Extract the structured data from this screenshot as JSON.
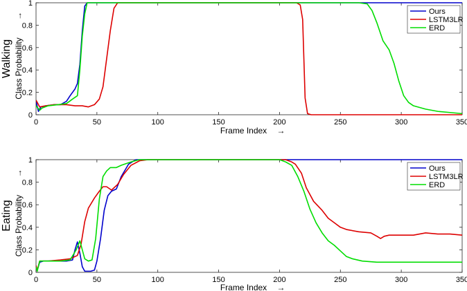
{
  "chart_data": [
    {
      "type": "line",
      "side_label": "Walking",
      "xlabel": "Frame Index",
      "xlabel_arrow": "→",
      "ylabel": "Class Probability",
      "ylabel_arrow": "→",
      "xlim": [
        0,
        350
      ],
      "ylim": [
        0,
        1
      ],
      "xticks": [
        "0",
        "50",
        "100",
        "150",
        "200",
        "250",
        "300",
        "350"
      ],
      "yticks": [
        "0",
        "0.2",
        "0.4",
        "0.6",
        "0.8",
        "1"
      ],
      "grid": false,
      "legend_position": "top-right",
      "series": [
        {
          "name": "Ours",
          "color": "#0000cc",
          "points": [
            [
              0,
              0.12
            ],
            [
              2,
              0.03
            ],
            [
              4,
              0.07
            ],
            [
              8,
              0.08
            ],
            [
              15,
              0.09
            ],
            [
              20,
              0.09
            ],
            [
              25,
              0.12
            ],
            [
              28,
              0.17
            ],
            [
              32,
              0.23
            ],
            [
              34,
              0.28
            ],
            [
              36,
              0.45
            ],
            [
              38,
              0.75
            ],
            [
              40,
              0.97
            ],
            [
              42,
              1.0
            ],
            [
              100,
              1.0
            ],
            [
              200,
              1.0
            ],
            [
              300,
              1.0
            ],
            [
              350,
              1.0
            ]
          ]
        },
        {
          "name": "LSTM3LR",
          "color": "#dd0000",
          "points": [
            [
              0,
              0.13
            ],
            [
              3,
              0.07
            ],
            [
              8,
              0.08
            ],
            [
              15,
              0.09
            ],
            [
              25,
              0.09
            ],
            [
              32,
              0.08
            ],
            [
              38,
              0.08
            ],
            [
              43,
              0.07
            ],
            [
              48,
              0.09
            ],
            [
              52,
              0.14
            ],
            [
              55,
              0.25
            ],
            [
              58,
              0.5
            ],
            [
              61,
              0.75
            ],
            [
              64,
              0.95
            ],
            [
              67,
              1.0
            ],
            [
              100,
              1.0
            ],
            [
              200,
              1.0
            ],
            [
              214,
              1.0
            ],
            [
              217,
              0.98
            ],
            [
              219,
              0.85
            ],
            [
              220,
              0.5
            ],
            [
              221,
              0.15
            ],
            [
              223,
              0.01
            ],
            [
              226,
              0.0
            ],
            [
              300,
              0.0
            ],
            [
              350,
              0.0
            ]
          ]
        },
        {
          "name": "ERD",
          "color": "#00dd00",
          "points": [
            [
              0,
              0.08
            ],
            [
              3,
              0.04
            ],
            [
              5,
              0.06
            ],
            [
              10,
              0.08
            ],
            [
              18,
              0.09
            ],
            [
              25,
              0.1
            ],
            [
              30,
              0.14
            ],
            [
              34,
              0.17
            ],
            [
              36,
              0.4
            ],
            [
              38,
              0.7
            ],
            [
              40,
              0.9
            ],
            [
              42,
              1.0
            ],
            [
              100,
              1.0
            ],
            [
              200,
              1.0
            ],
            [
              265,
              1.0
            ],
            [
              272,
              0.99
            ],
            [
              276,
              0.93
            ],
            [
              280,
              0.82
            ],
            [
              285,
              0.66
            ],
            [
              290,
              0.58
            ],
            [
              294,
              0.46
            ],
            [
              298,
              0.3
            ],
            [
              302,
              0.17
            ],
            [
              306,
              0.11
            ],
            [
              310,
              0.08
            ],
            [
              320,
              0.05
            ],
            [
              330,
              0.03
            ],
            [
              340,
              0.02
            ],
            [
              350,
              0.01
            ]
          ]
        }
      ]
    },
    {
      "type": "line",
      "side_label": "Eating",
      "xlabel": "Frame Index",
      "xlabel_arrow": "→",
      "ylabel": "Class Probability",
      "ylabel_arrow": "→",
      "xlim": [
        0,
        350
      ],
      "ylim": [
        0,
        1
      ],
      "xticks": [
        "0",
        "50",
        "100",
        "150",
        "200",
        "250",
        "300",
        "350"
      ],
      "yticks": [
        "0",
        "0.2",
        "0.4",
        "0.6",
        "0.8",
        "1"
      ],
      "grid": false,
      "legend_position": "top-right",
      "series": [
        {
          "name": "Ours",
          "color": "#0000cc",
          "points": [
            [
              0,
              0.05
            ],
            [
              1,
              0.02
            ],
            [
              3,
              0.09
            ],
            [
              6,
              0.1
            ],
            [
              15,
              0.1
            ],
            [
              25,
              0.1
            ],
            [
              30,
              0.11
            ],
            [
              32,
              0.2
            ],
            [
              34,
              0.27
            ],
            [
              36,
              0.17
            ],
            [
              38,
              0.05
            ],
            [
              40,
              0.01
            ],
            [
              45,
              0.01
            ],
            [
              48,
              0.02
            ],
            [
              50,
              0.1
            ],
            [
              53,
              0.3
            ],
            [
              56,
              0.55
            ],
            [
              59,
              0.68
            ],
            [
              62,
              0.72
            ],
            [
              66,
              0.74
            ],
            [
              70,
              0.85
            ],
            [
              76,
              0.96
            ],
            [
              82,
              1.0
            ],
            [
              100,
              1.0
            ],
            [
              200,
              1.0
            ],
            [
              300,
              1.0
            ],
            [
              350,
              1.0
            ]
          ]
        },
        {
          "name": "LSTM3LR",
          "color": "#dd0000",
          "points": [
            [
              0,
              0.06
            ],
            [
              1,
              0.02
            ],
            [
              3,
              0.1
            ],
            [
              10,
              0.1
            ],
            [
              20,
              0.11
            ],
            [
              28,
              0.12
            ],
            [
              34,
              0.15
            ],
            [
              37,
              0.25
            ],
            [
              40,
              0.45
            ],
            [
              43,
              0.57
            ],
            [
              48,
              0.66
            ],
            [
              52,
              0.72
            ],
            [
              55,
              0.76
            ],
            [
              58,
              0.76
            ],
            [
              62,
              0.73
            ],
            [
              67,
              0.78
            ],
            [
              72,
              0.87
            ],
            [
              78,
              0.95
            ],
            [
              85,
              0.99
            ],
            [
              92,
              1.0
            ],
            [
              200,
              1.0
            ],
            [
              205,
              1.0
            ],
            [
              210,
              0.98
            ],
            [
              213,
              0.96
            ],
            [
              218,
              0.88
            ],
            [
              222,
              0.75
            ],
            [
              228,
              0.63
            ],
            [
              235,
              0.55
            ],
            [
              240,
              0.48
            ],
            [
              245,
              0.44
            ],
            [
              250,
              0.4
            ],
            [
              255,
              0.38
            ],
            [
              265,
              0.36
            ],
            [
              275,
              0.35
            ],
            [
              280,
              0.32
            ],
            [
              283,
              0.3
            ],
            [
              286,
              0.32
            ],
            [
              290,
              0.33
            ],
            [
              300,
              0.33
            ],
            [
              310,
              0.33
            ],
            [
              315,
              0.34
            ],
            [
              320,
              0.35
            ],
            [
              330,
              0.34
            ],
            [
              340,
              0.34
            ],
            [
              350,
              0.33
            ]
          ]
        },
        {
          "name": "ERD",
          "color": "#00dd00",
          "points": [
            [
              0,
              0.05
            ],
            [
              1,
              0.01
            ],
            [
              3,
              0.1
            ],
            [
              10,
              0.1
            ],
            [
              20,
              0.1
            ],
            [
              28,
              0.11
            ],
            [
              33,
              0.2
            ],
            [
              36,
              0.28
            ],
            [
              38,
              0.2
            ],
            [
              40,
              0.12
            ],
            [
              43,
              0.1
            ],
            [
              46,
              0.11
            ],
            [
              49,
              0.3
            ],
            [
              52,
              0.65
            ],
            [
              55,
              0.85
            ],
            [
              58,
              0.9
            ],
            [
              61,
              0.93
            ],
            [
              66,
              0.93
            ],
            [
              70,
              0.95
            ],
            [
              78,
              0.98
            ],
            [
              85,
              1.0
            ],
            [
              200,
              1.0
            ],
            [
              205,
              0.98
            ],
            [
              210,
              0.95
            ],
            [
              215,
              0.85
            ],
            [
              220,
              0.72
            ],
            [
              225,
              0.56
            ],
            [
              230,
              0.44
            ],
            [
              235,
              0.35
            ],
            [
              240,
              0.28
            ],
            [
              245,
              0.24
            ],
            [
              250,
              0.19
            ],
            [
              255,
              0.14
            ],
            [
              260,
              0.12
            ],
            [
              268,
              0.1
            ],
            [
              280,
              0.09
            ],
            [
              300,
              0.09
            ],
            [
              320,
              0.09
            ],
            [
              335,
              0.09
            ],
            [
              350,
              0.09
            ]
          ]
        }
      ]
    }
  ]
}
